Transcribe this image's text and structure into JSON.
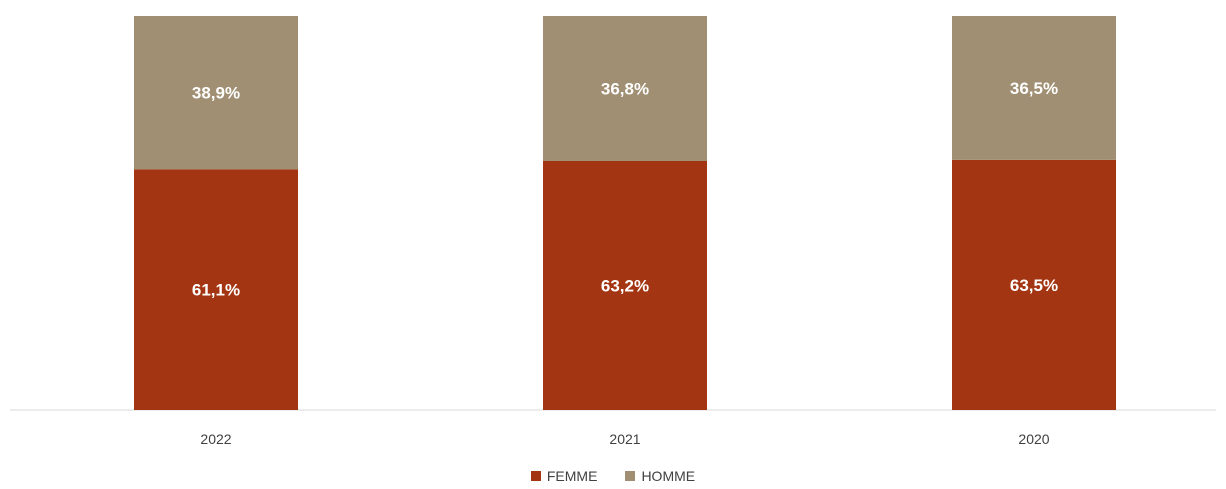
{
  "chart_data": {
    "type": "bar",
    "stacked": true,
    "categories": [
      "2022",
      "2021",
      "2020"
    ],
    "series": [
      {
        "name": "FEMME",
        "values": [
          61.1,
          63.2,
          63.5
        ],
        "labels": [
          "61,1%",
          "63,2%",
          "63,5%"
        ],
        "color": "#a33512"
      },
      {
        "name": "HOMME",
        "values": [
          38.9,
          36.8,
          36.5
        ],
        "labels": [
          "38,9%",
          "36,8%",
          "36,5%"
        ],
        "color": "#a08f73"
      }
    ],
    "ylim": [
      0,
      100
    ],
    "grid": false,
    "legend_position": "bottom"
  }
}
